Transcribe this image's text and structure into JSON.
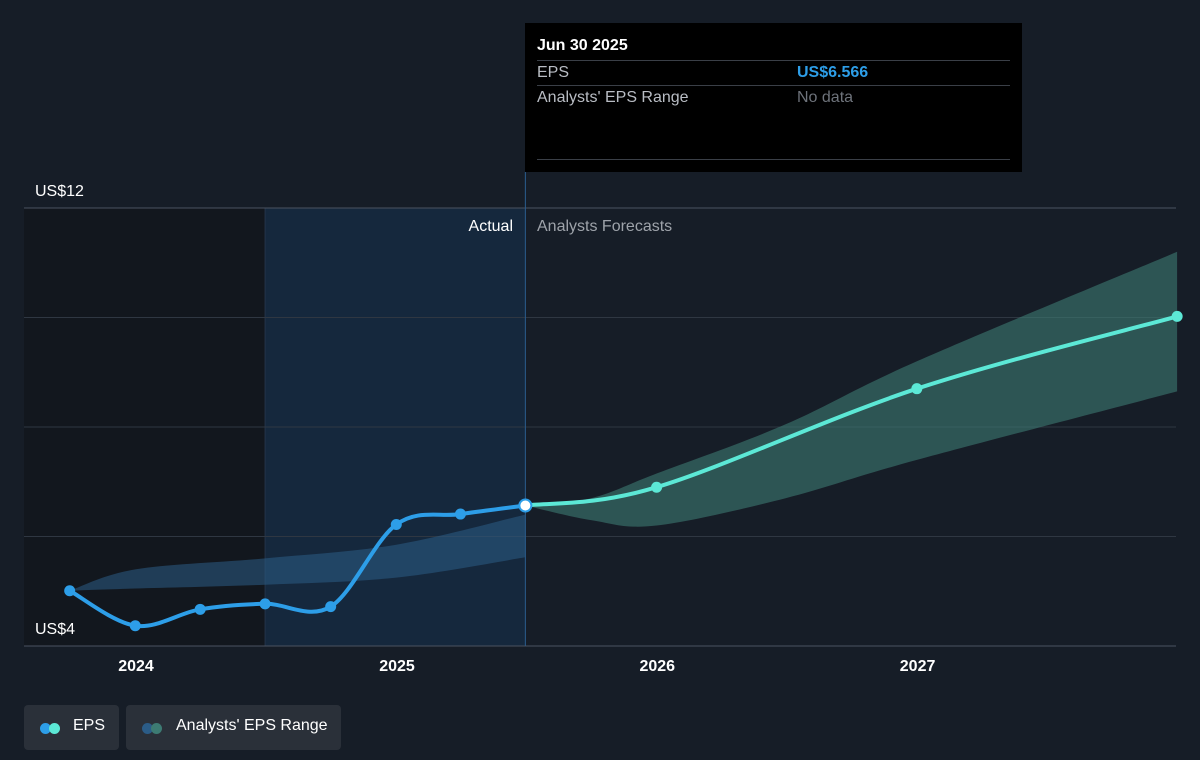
{
  "chart_data": {
    "type": "line",
    "y_axis": {
      "top_label": "US$12",
      "bottom_label": "US$4",
      "ylim": [
        4,
        12
      ]
    },
    "x_axis": {
      "tick_labels": [
        "2024",
        "2025",
        "2026",
        "2027"
      ]
    },
    "divider_labels": {
      "actual": "Actual",
      "forecast": "Analysts Forecasts"
    },
    "series": [
      {
        "name": "EPS",
        "color": "#2d9ee8",
        "points": [
          [
            "2023-09-30",
            5.01
          ],
          [
            "2023-12-31",
            4.37
          ],
          [
            "2024-03-31",
            4.67
          ],
          [
            "2024-06-30",
            4.77
          ],
          [
            "2024-09-30",
            4.72
          ],
          [
            "2024-12-31",
            6.22
          ],
          [
            "2025-03-31",
            6.41
          ],
          [
            "2025-06-30",
            6.566
          ]
        ]
      },
      {
        "name": "EPS forecast",
        "color": "#5ce8d6",
        "points": [
          [
            "2025-06-30",
            6.566
          ],
          [
            "2025-12-31",
            6.9
          ],
          [
            "2026-12-31",
            8.7
          ],
          [
            "2027-12-31",
            10.02
          ]
        ]
      }
    ],
    "range_band_actual": {
      "name": "Analysts' EPS Range (past)",
      "color": "#2b5c87",
      "x": [
        "2023-09-30",
        "2023-12-31",
        "2024-06-30",
        "2024-12-31",
        "2025-06-30"
      ],
      "low": [
        5.01,
        5.05,
        5.12,
        5.25,
        5.62
      ],
      "high": [
        5.01,
        5.4,
        5.6,
        5.85,
        6.4
      ]
    },
    "range_band_forecast": {
      "name": "Analysts' EPS Range",
      "color": "#3d7b73",
      "x": [
        "2025-06-30",
        "2025-09-30",
        "2025-12-31",
        "2026-06-30",
        "2026-12-31",
        "2027-12-31"
      ],
      "low": [
        6.566,
        6.3,
        6.2,
        6.7,
        7.4,
        8.65
      ],
      "high": [
        6.566,
        6.7,
        7.15,
        8.05,
        9.2,
        11.2
      ]
    }
  },
  "tooltip": {
    "date": "Jun 30 2025",
    "eps_label": "EPS",
    "eps_value": "US$6.566",
    "range_label": "Analysts' EPS Range",
    "range_value": "No data"
  },
  "legend": {
    "eps": "EPS",
    "range": "Analysts' EPS Range"
  },
  "colors": {
    "background": "#161d27",
    "eps_line": "#2d9ee8",
    "forecast_line": "#5ce8d6",
    "forecast_band": "#3d7b73",
    "actual_band": "#2b5c87"
  }
}
